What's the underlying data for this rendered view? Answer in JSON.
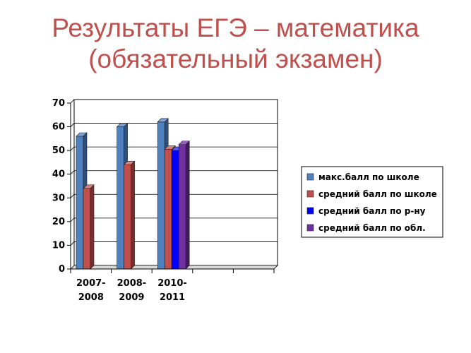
{
  "title": {
    "line1": "Результаты ЕГЭ – математика",
    "line2": "(обязательный экзамен)"
  },
  "colors": {
    "title": "#c0504d",
    "series": [
      "#4f81bd",
      "#c0504d",
      "#0000ff",
      "#7030a0"
    ],
    "series_dark": [
      "#2d4f7c",
      "#7b2f2d",
      "#00009a",
      "#3f1a5c"
    ],
    "series_top": [
      "#7aa0d4",
      "#d98280",
      "#5a5aff",
      "#9a5fc4"
    ]
  },
  "chart_data": {
    "type": "bar",
    "categories": [
      [
        "2007-",
        "2008"
      ],
      [
        "2008-",
        "2009"
      ],
      [
        "2010-",
        "2011"
      ],
      [
        "",
        ""
      ],
      [
        "",
        ""
      ]
    ],
    "series": [
      {
        "name": "макс.балл по школе",
        "values": [
          56,
          60,
          62,
          null,
          null
        ]
      },
      {
        "name": "средний балл по школе",
        "values": [
          34,
          44,
          50.5,
          null,
          null
        ]
      },
      {
        "name": "средний балл по р-ну",
        "values": [
          null,
          null,
          50,
          null,
          null
        ]
      },
      {
        "name": "средний балл по обл.",
        "values": [
          null,
          null,
          52.5,
          null,
          null
        ]
      }
    ],
    "yticks": [
      "0",
      "10",
      "20",
      "30",
      "40",
      "50",
      "60",
      "70"
    ],
    "ylim": [
      0,
      70
    ],
    "grid": true,
    "legend": "right"
  }
}
